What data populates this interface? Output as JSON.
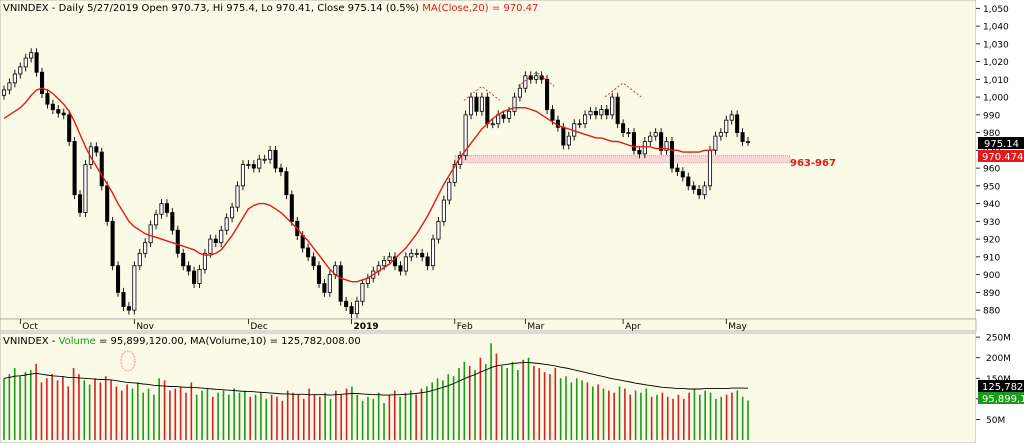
{
  "chart_data": [
    {
      "type": "candlestick",
      "title": "VNINDEX - Daily 5/27/2019 Open 970.73, Hi 975.4, Lo 970.41, Close 975.14 (0.5%)",
      "title_prefix": "VNINDEX - Daily 5/27/2019 Open 970.73, Hi 975.4, Lo 970.41, Close 975.14 (0.5%) ",
      "ma_label": "MA(Close,20) = 970.47",
      "ylim": [
        875,
        1053
      ],
      "y_ticks": [
        880,
        890,
        900,
        910,
        920,
        930,
        940,
        950,
        960,
        970,
        980,
        990,
        1000,
        1010,
        1020,
        1030,
        1040,
        1050
      ],
      "x_tick_labels": [
        "Oct",
        "Nov",
        "Dec",
        "2019",
        "Feb",
        "Mar",
        "Apr",
        "May"
      ],
      "x_tick_index": [
        3,
        24,
        45,
        64,
        83,
        96,
        114,
        133
      ],
      "closes": [
        1004,
        1008,
        1013,
        1017,
        1022,
        1025,
        1014,
        1002,
        996,
        993,
        991,
        990,
        975,
        945,
        935,
        962,
        972,
        969,
        950,
        930,
        905,
        890,
        882,
        880,
        905,
        912,
        918,
        928,
        934,
        940,
        935,
        925,
        912,
        905,
        902,
        895,
        903,
        912,
        920,
        918,
        925,
        932,
        938,
        950,
        962,
        962,
        960,
        965,
        965,
        970,
        960,
        958,
        945,
        930,
        922,
        915,
        910,
        905,
        895,
        890,
        900,
        905,
        885,
        882,
        878,
        885,
        895,
        898,
        902,
        905,
        908,
        910,
        905,
        902,
        910,
        912,
        912,
        910,
        905,
        920,
        930,
        942,
        952,
        962,
        967,
        990,
        1000,
        992,
        1000,
        985,
        985,
        990,
        988,
        992,
        1000,
        1005,
        1012,
        1010,
        1012,
        1010,
        993,
        987,
        983,
        973,
        978,
        985,
        985,
        990,
        992,
        990,
        993,
        990,
        1000,
        985,
        980,
        980,
        970,
        968,
        975,
        978,
        980,
        970,
        975,
        960,
        958,
        955,
        950,
        948,
        945,
        950,
        970,
        978,
        980,
        987,
        990,
        980,
        975,
        975
      ],
      "ma_values": [
        988,
        990,
        992,
        994,
        997,
        1001,
        1004,
        1005,
        1004,
        1002,
        999,
        996,
        992,
        986,
        979,
        972,
        966,
        961,
        956,
        951,
        946,
        940,
        935,
        930,
        927,
        925,
        923,
        922,
        921,
        920,
        919,
        918,
        917,
        916,
        915,
        914,
        912,
        911,
        911,
        912,
        914,
        918,
        922,
        927,
        932,
        937,
        939,
        940,
        940,
        939,
        937,
        935,
        932,
        929,
        926,
        922,
        919,
        915,
        911,
        907,
        903,
        900,
        898,
        897,
        896,
        896,
        897,
        898,
        900,
        902,
        904,
        906,
        909,
        912,
        915,
        919,
        923,
        928,
        933,
        939,
        945,
        951,
        956,
        961,
        966,
        970,
        974,
        978,
        982,
        985,
        988,
        990,
        992,
        993,
        994,
        994,
        994,
        993,
        992,
        990,
        988,
        986,
        984,
        983,
        982,
        981,
        980,
        979,
        978,
        977,
        977,
        976,
        975,
        975,
        974,
        973,
        972,
        972,
        972,
        972,
        971,
        971,
        971,
        970,
        970,
        969,
        969,
        969,
        969,
        970,
        970,
        970.47
      ],
      "support_zone": {
        "low": 963,
        "high": 967,
        "label": "963-967"
      },
      "last_close_label": "975.14",
      "last_ma_label": "970.474"
    },
    {
      "type": "bar",
      "title": "VNINDEX - Volume = 95,899,120.00, MA(Volume,10) = 125,782,008.00",
      "title_prefix": "VNINDEX - ",
      "volume_word": "Volume",
      "title_rest": " = 95,899,120.00, MA(Volume,10) = 125,782,008.00",
      "ylim": [
        0,
        260
      ],
      "y_ticks": [
        50,
        100,
        150,
        200,
        250
      ],
      "y_tick_labels": [
        "50M",
        "100M",
        "150M",
        "200M",
        "250M"
      ],
      "values_millions": [
        150,
        160,
        175,
        155,
        165,
        170,
        185,
        140,
        150,
        160,
        145,
        155,
        130,
        175,
        160,
        145,
        135,
        150,
        140,
        155,
        145,
        130,
        120,
        135,
        125,
        140,
        115,
        125,
        110,
        150,
        145,
        120,
        125,
        130,
        115,
        140,
        110,
        120,
        125,
        105,
        115,
        120,
        110,
        125,
        115,
        120,
        105,
        110,
        115,
        100,
        110,
        105,
        95,
        120,
        115,
        110,
        100,
        125,
        110,
        105,
        115,
        100,
        120,
        110,
        125,
        130,
        110,
        95,
        105,
        100,
        115,
        90,
        110,
        120,
        105,
        115,
        120,
        110,
        125,
        130,
        140,
        150,
        145,
        160,
        155,
        175,
        190,
        180,
        170,
        200,
        185,
        235,
        210,
        180,
        175,
        190,
        170,
        195,
        200,
        180,
        175,
        165,
        160,
        175,
        150,
        155,
        140,
        150,
        145,
        140,
        130,
        135,
        125,
        120,
        115,
        130,
        125,
        110,
        120,
        115,
        125,
        105,
        110,
        115,
        105,
        100,
        110,
        100,
        115,
        125,
        110,
        120,
        115,
        100,
        105,
        110,
        115,
        120,
        105,
        95.9
      ],
      "ma_values": [
        150,
        152,
        155,
        156,
        158,
        160,
        162,
        160,
        158,
        156,
        155,
        154,
        152,
        152,
        151,
        150,
        149,
        148,
        147,
        147,
        146,
        144,
        142,
        140,
        139,
        138,
        136,
        135,
        133,
        132,
        131,
        130,
        130,
        129,
        128,
        128,
        127,
        126,
        125,
        124,
        123,
        122,
        121,
        120,
        119,
        118,
        118,
        117,
        116,
        115,
        114,
        113,
        112,
        112,
        111,
        111,
        111,
        110,
        110,
        110,
        110,
        109,
        110,
        111,
        112,
        113,
        113,
        112,
        111,
        110,
        110,
        109,
        109,
        110,
        110,
        111,
        112,
        113,
        115,
        117,
        120,
        124,
        128,
        132,
        137,
        143,
        149,
        154,
        159,
        165,
        170,
        176,
        180,
        182,
        184,
        186,
        187,
        188,
        188,
        187,
        186,
        184,
        182,
        180,
        177,
        175,
        172,
        169,
        166,
        163,
        160,
        157,
        154,
        151,
        148,
        146,
        143,
        141,
        138,
        136,
        134,
        132,
        130,
        128,
        127,
        126,
        125,
        125,
        124,
        124,
        124,
        125,
        125,
        125,
        125,
        125,
        126,
        126,
        126,
        125.8
      ],
      "last_ma_label": "125,782,",
      "last_volume_label": "95,899,1"
    }
  ],
  "colors": {
    "plot_bg": "#fafae6",
    "axis_bg": "#ffffff",
    "up_candle": "#ffffff",
    "down_candle": "#000000",
    "ma_line": "#e31a1c",
    "support_zone": "#f08080",
    "support_label": "#e31a1c",
    "pattern_dash": "#e31a1c",
    "vol_up": "#1a9a1a",
    "vol_down": "#d62020",
    "vol_ma": "#000000",
    "volume_word": "#1a9a1a",
    "ma_title": "#e31a1c",
    "highlight_circle": "#f4a0a0"
  }
}
